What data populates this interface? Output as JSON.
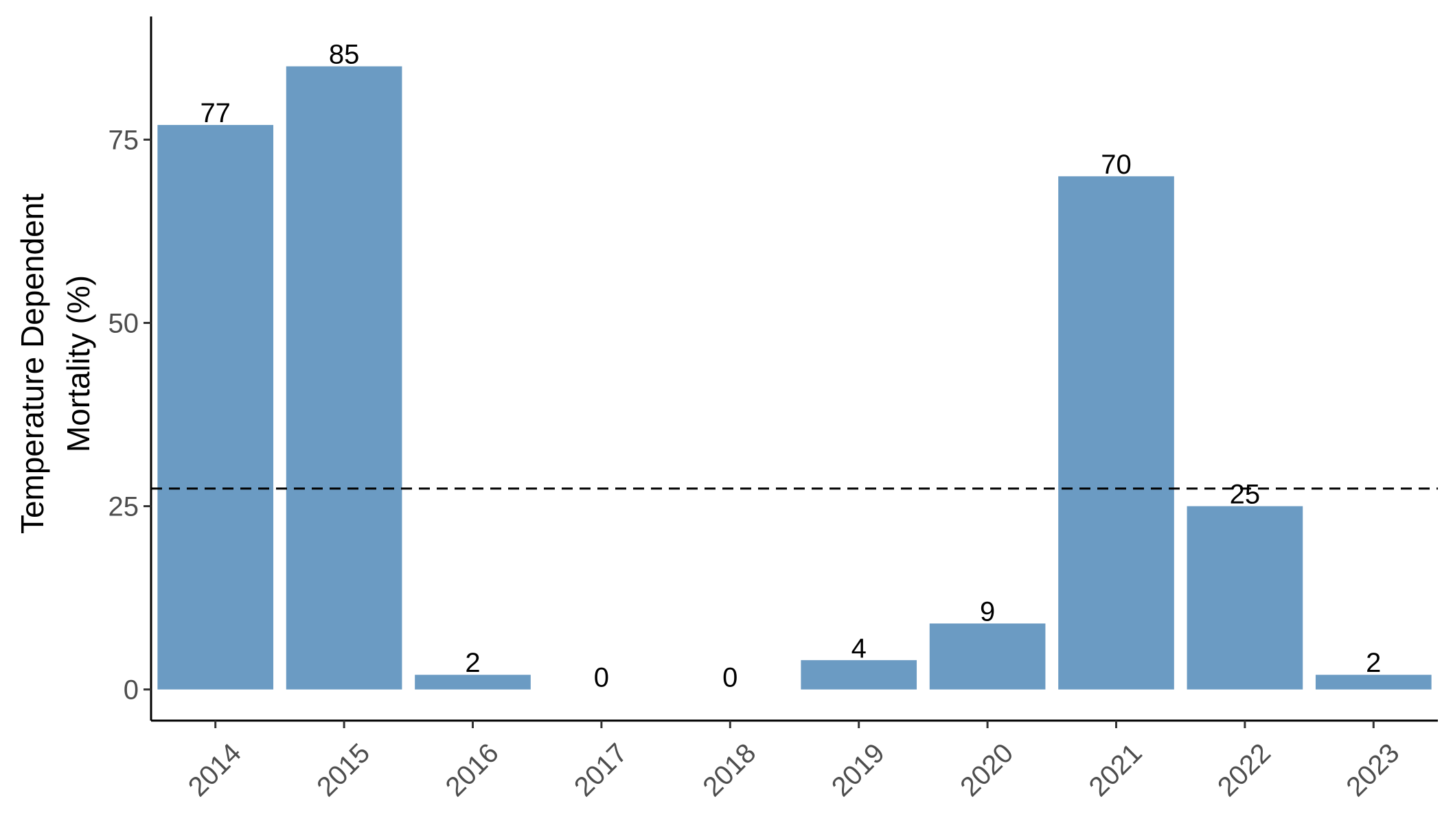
{
  "chart_data": {
    "type": "bar",
    "categories": [
      "2014",
      "2015",
      "2016",
      "2017",
      "2018",
      "2019",
      "2020",
      "2021",
      "2022",
      "2023"
    ],
    "values": [
      77,
      85,
      2,
      0,
      0,
      4,
      9,
      70,
      25,
      2
    ],
    "data_labels": [
      "77",
      "85",
      "2",
      "0",
      "0",
      "4",
      "9",
      "70",
      "25",
      "2"
    ],
    "title": "",
    "xlabel": "",
    "ylabel": [
      "Temperature Dependent",
      "Mortality (%)"
    ],
    "ylim": [
      -4.25,
      91.8
    ],
    "yticks": [
      0,
      25,
      50,
      75
    ],
    "ytick_labels": [
      "0",
      "25",
      "50",
      "75"
    ],
    "reference_line": {
      "y": 27.4,
      "style": "dashed",
      "color": "#000000"
    },
    "bar_color": "#6b9bc3",
    "grid": false,
    "legend": "none"
  }
}
